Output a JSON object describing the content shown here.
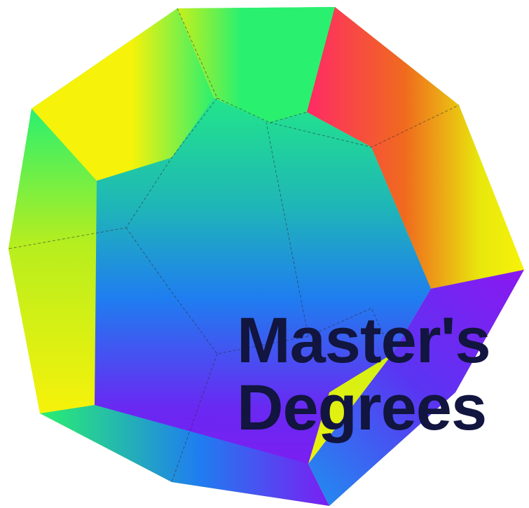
{
  "title": {
    "line1": "Master's",
    "line2": "Degrees"
  },
  "colors": {
    "text": "#11153f",
    "green": "#2af06f",
    "yellow": "#f6f20a",
    "red": "#ff2a66",
    "orange": "#f06a1e",
    "blue": "#1f7df0",
    "purple": "#7a1ff2",
    "teal": "#1fc8a8"
  },
  "icons": {
    "shape": "dodecahedron-icon"
  }
}
